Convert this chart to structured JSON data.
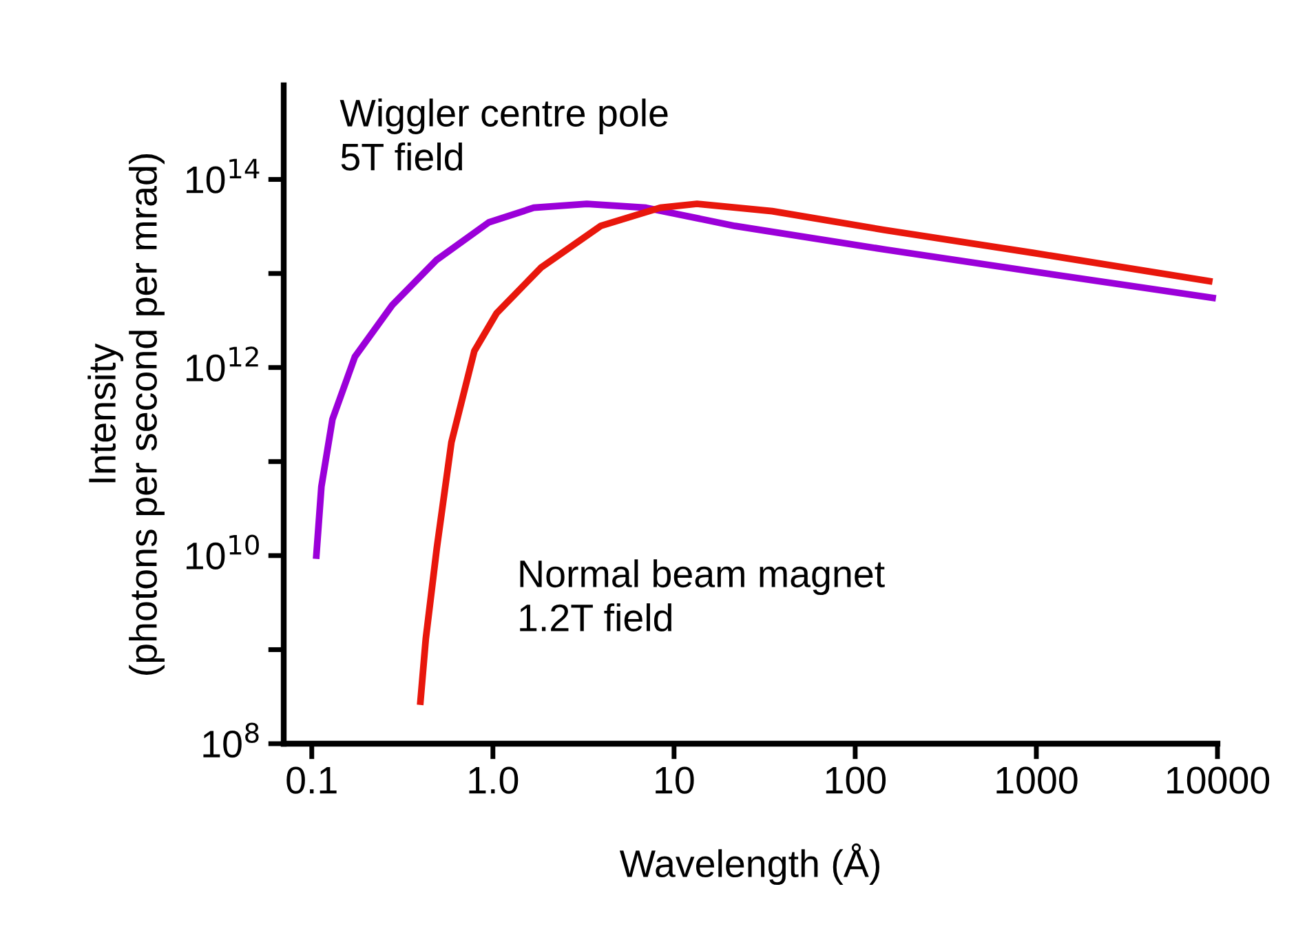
{
  "chart_data": {
    "type": "line",
    "xlabel": "Wavelength (Å)",
    "ylabel": "Intensity\n(photons per second per mrad)",
    "log": "xy",
    "grid": false,
    "legend": false,
    "xlim": [
      0.07,
      10000
    ],
    "ylim": [
      100000000.0,
      1000000000000000.0
    ],
    "xticks": [
      0.1,
      {
        "value": 1,
        "label": "1.0"
      },
      10,
      100,
      1000,
      10000
    ],
    "yticks": [
      {
        "value": 100000000.0,
        "label": "10$^{8}$"
      },
      {
        "value": 1000000000.0,
        "label": null
      },
      {
        "value": 10000000000.0,
        "label": "10$^{10}$"
      },
      {
        "value": 100000000000.0,
        "label": null
      },
      {
        "value": 1000000000000.0,
        "label": "10$^{12}$"
      },
      {
        "value": 10000000000000.0,
        "label": null
      },
      {
        "value": 100000000000000.0,
        "label": "10$^{14}$"
      }
    ],
    "series": [
      {
        "name": "Wiggler centre pole\n5T field",
        "color": "#9b00d9",
        "x": [
          0.106,
          0.113,
          0.13,
          0.173,
          0.278,
          0.49,
          0.95,
          1.68,
          3.3,
          7,
          21.7,
          145,
          955,
          9400
        ],
        "values": [
          10000000000.0,
          54000000000.0,
          280000000000.0,
          1300000000000.0,
          4600000000000.0,
          14000000000000.0,
          35000000000000.0,
          50000000000000.0,
          55000000000000.0,
          50000000000000.0,
          32000000000000.0,
          18000000000000.0,
          10500000000000.0,
          5500000000000.0
        ]
      },
      {
        "name": "Normal beam magnet\n1.2T field",
        "color": "#e8170c",
        "x": [
          0.398,
          0.426,
          0.49,
          0.59,
          0.79,
          1.05,
          1.84,
          3.93,
          8.4,
          13.4,
          34.8,
          145,
          955,
          9000
        ],
        "values": [
          280000000.0,
          1300000000.0,
          12000000000.0,
          160000000000.0,
          1500000000000.0,
          3800000000000.0,
          11500000000000.0,
          32000000000000.0,
          50000000000000.0,
          55000000000000.0,
          46000000000000.0,
          29000000000000.0,
          16600000000000.0,
          8300000000000.0
        ]
      }
    ]
  }
}
